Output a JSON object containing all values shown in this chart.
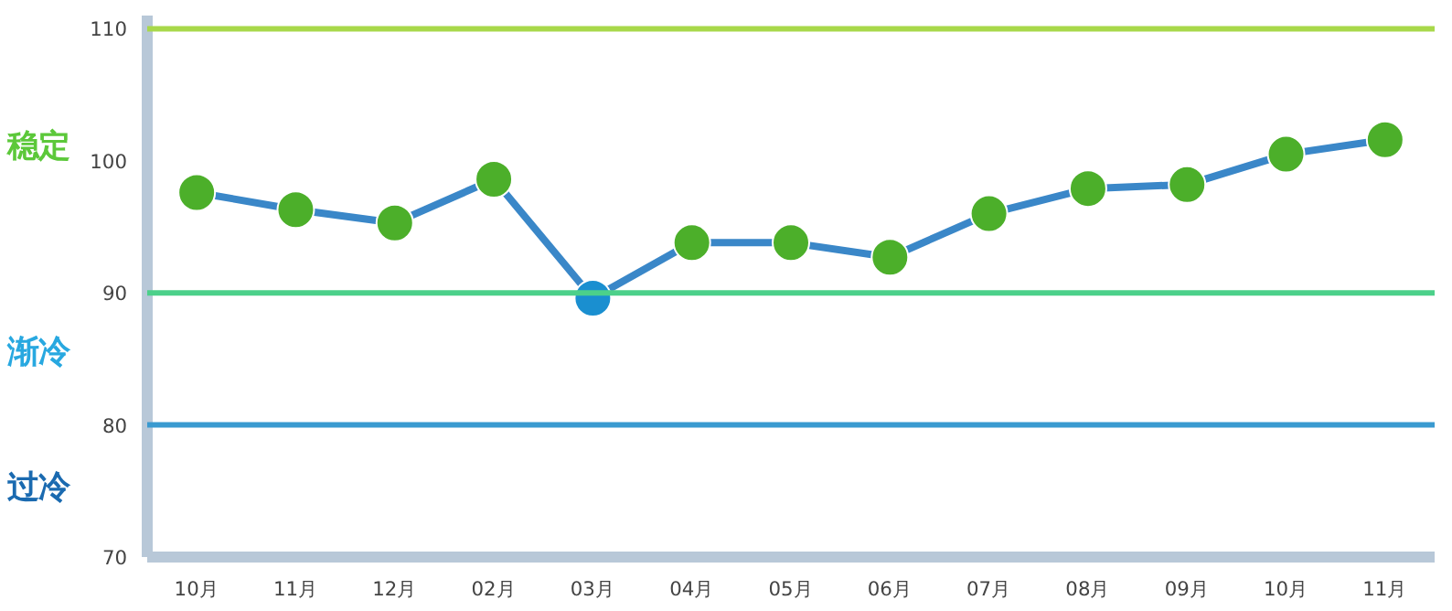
{
  "chart_data": {
    "type": "line",
    "categories": [
      "10月",
      "11月",
      "12月",
      "02月",
      "03月",
      "04月",
      "05月",
      "06月",
      "07月",
      "08月",
      "09月",
      "10月",
      "11月"
    ],
    "series": [
      {
        "color": "#3a87c8",
        "colors": [
          "#4caf2a",
          "#4caf2a",
          "#4caf2a",
          "#4caf2a",
          "#1a8fd0",
          "#4caf2a",
          "#4caf2a",
          "#4caf2a",
          "#4caf2a",
          "#4caf2a",
          "#4caf2a",
          "#4caf2a",
          "#4caf2a"
        ],
        "values": [
          97.6,
          96.3,
          95.3,
          98.6,
          89.6,
          93.8,
          93.8,
          92.7,
          96.0,
          97.9,
          98.2,
          100.5,
          101.6
        ]
      }
    ],
    "ylim": [
      70,
      111
    ],
    "yticks": [
      70,
      80,
      90,
      100,
      110
    ],
    "marker": "circle",
    "grid": false,
    "ref_lines": [
      {
        "axis": "y",
        "value": 110,
        "color": "#a8d84a"
      },
      {
        "axis": "y",
        "value": 90,
        "color": "#4cd08a"
      },
      {
        "axis": "y",
        "value": 80,
        "color": "#3a9ad0"
      }
    ],
    "annotations": [
      "稳定",
      "渐冷",
      "过冷"
    ]
  }
}
